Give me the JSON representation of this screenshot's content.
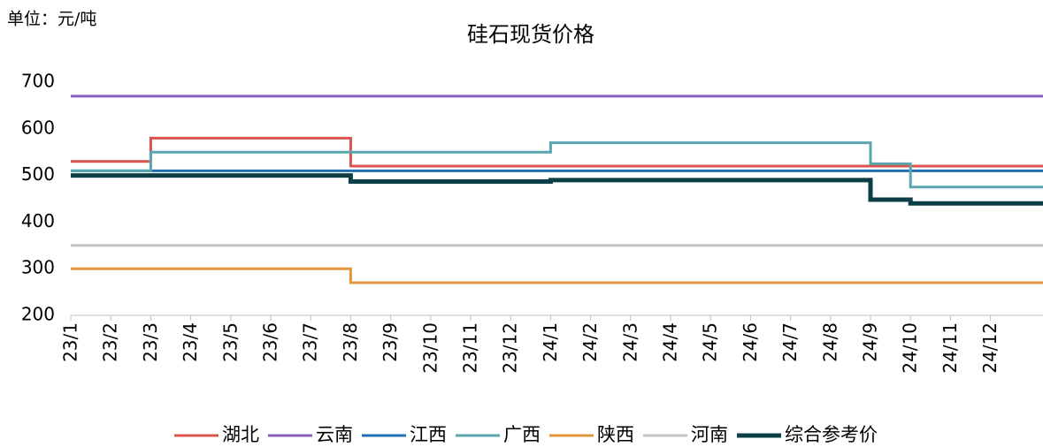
{
  "chart_data": {
    "type": "line",
    "step": true,
    "title": "硅石现货价格",
    "unit_label": "单位：元/吨",
    "categories": [
      "23/1",
      "23/2",
      "23/3",
      "23/4",
      "23/5",
      "23/6",
      "23/7",
      "23/8",
      "23/9",
      "23/10",
      "23/11",
      "23/12",
      "24/1",
      "24/2",
      "24/3",
      "24/4",
      "24/5",
      "24/6",
      "24/7",
      "24/8",
      "24/9",
      "24/10",
      "24/11",
      "24/12"
    ],
    "series": [
      {
        "name": "湖北",
        "color": "#d9534f",
        "values": [
          530,
          530,
          580,
          580,
          580,
          580,
          580,
          520,
          520,
          520,
          520,
          520,
          520,
          520,
          520,
          520,
          520,
          520,
          520,
          520,
          520,
          520,
          520,
          520
        ]
      },
      {
        "name": "云南",
        "color": "#8a5cc2",
        "values": [
          670,
          670,
          670,
          670,
          670,
          670,
          670,
          670,
          670,
          670,
          670,
          670,
          670,
          670,
          670,
          670,
          670,
          670,
          670,
          670,
          670,
          670,
          670,
          670
        ]
      },
      {
        "name": "江西",
        "color": "#1f6fb5",
        "values": [
          510,
          510,
          510,
          510,
          510,
          510,
          510,
          510,
          510,
          510,
          510,
          510,
          510,
          510,
          510,
          510,
          510,
          510,
          510,
          510,
          510,
          510,
          510,
          510
        ]
      },
      {
        "name": "广西",
        "color": "#5aa5ae",
        "values": [
          510,
          510,
          550,
          550,
          550,
          550,
          550,
          550,
          550,
          550,
          550,
          550,
          570,
          570,
          570,
          570,
          570,
          570,
          570,
          570,
          525,
          475,
          475,
          475
        ]
      },
      {
        "name": "陕西",
        "color": "#e3953e",
        "values": [
          300,
          300,
          300,
          300,
          300,
          300,
          300,
          270,
          270,
          270,
          270,
          270,
          270,
          270,
          270,
          270,
          270,
          270,
          270,
          270,
          270,
          270,
          270,
          270
        ]
      },
      {
        "name": "河南",
        "color": "#c3c3c3",
        "values": [
          350,
          350,
          350,
          350,
          350,
          350,
          350,
          350,
          350,
          350,
          350,
          350,
          350,
          350,
          350,
          350,
          350,
          350,
          350,
          350,
          350,
          350,
          350,
          350
        ]
      },
      {
        "name": "综合参考价",
        "color": "#0b3e46",
        "width": 5,
        "values": [
          500,
          500,
          500,
          500,
          500,
          500,
          500,
          487,
          487,
          487,
          487,
          487,
          490,
          490,
          490,
          490,
          490,
          490,
          490,
          490,
          448,
          440,
          440,
          440
        ]
      }
    ],
    "ylim": [
      200,
      700
    ],
    "yticks": [
      200,
      300,
      400,
      500,
      600,
      700
    ],
    "legend": "bottom"
  }
}
